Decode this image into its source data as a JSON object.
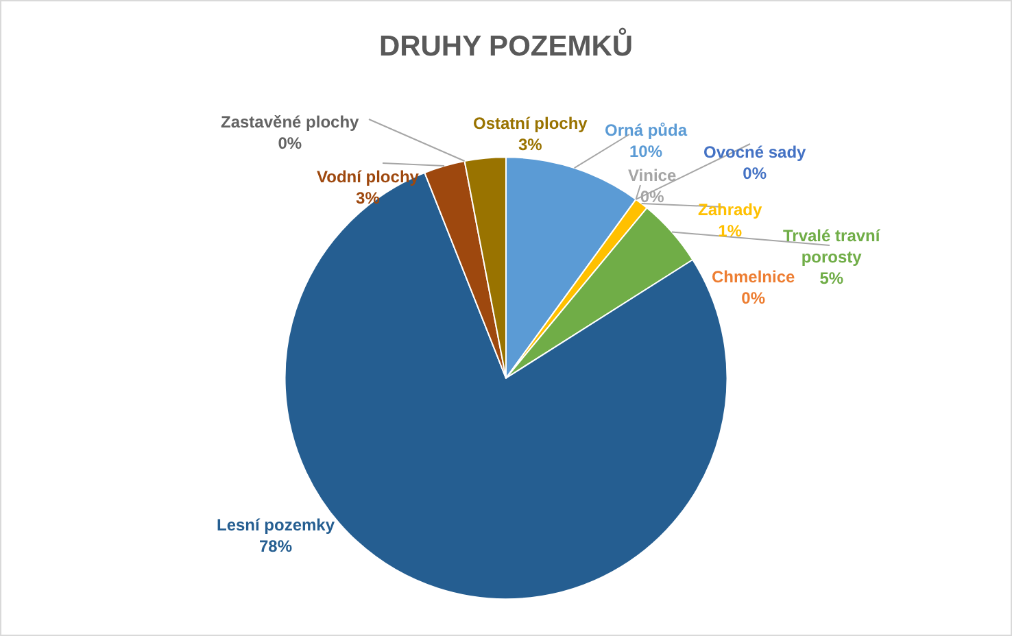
{
  "chart_data": {
    "type": "pie",
    "title": "DRUHY POZEMKŮ",
    "categories": [
      "Orná půda",
      "Vinice",
      "Ovocné sady",
      "Zahrady",
      "Chmelnice",
      "Trvalé travní porosty",
      "Lesní pozemky",
      "Vodní plochy",
      "Zastavěné plochy",
      "Ostatní plochy"
    ],
    "values": [
      10,
      0,
      0,
      1,
      0,
      5,
      78,
      3,
      0,
      3
    ],
    "value_labels": [
      "10%",
      "0%",
      "0%",
      "1%",
      "0%",
      "5%",
      "78%",
      "3%",
      "0%",
      "3%"
    ],
    "colors": [
      "#5b9bd5",
      "#a5a5a5",
      "#4472c4",
      "#ffc000",
      "#ed7d31",
      "#70ad47",
      "#255e91",
      "#9e480e",
      "#636363",
      "#997300"
    ]
  }
}
